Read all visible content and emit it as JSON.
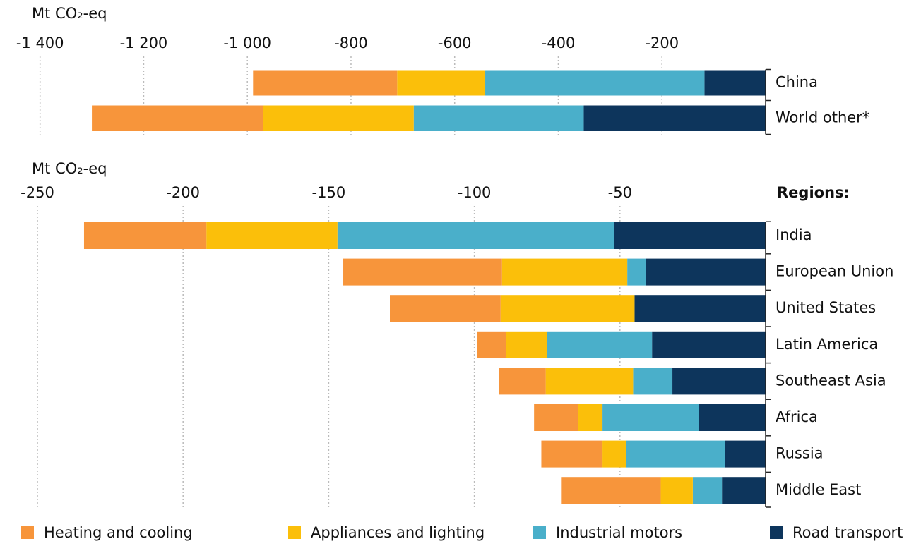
{
  "chart_data": [
    {
      "type": "bar",
      "orientation": "horizontal",
      "stacked": true,
      "xlabel": "Mt CO₂-eq",
      "categories": [
        "China",
        "World other*"
      ],
      "series": [
        {
          "name": "Heating and cooling",
          "color": "#f7953b",
          "values": [
            -278,
            -331
          ]
        },
        {
          "name": "Appliances and lighting",
          "color": "#fbbf0a",
          "values": [
            -170,
            -290
          ]
        },
        {
          "name": "Industrial motors",
          "color": "#4aafca",
          "values": [
            -423,
            -328
          ]
        },
        {
          "name": "Road transport",
          "color": "#0d355c",
          "values": [
            -118,
            -351
          ]
        }
      ],
      "xlim": [
        -1450,
        0
      ],
      "xticks": [
        {
          "value": -1400,
          "label": "-1 400"
        },
        {
          "value": -1200,
          "label": "-1 200"
        },
        {
          "value": -1000,
          "label": "-1 000"
        },
        -800,
        -600,
        -400,
        -200
      ],
      "grid": true
    },
    {
      "type": "bar",
      "orientation": "horizontal",
      "stacked": true,
      "xlabel": "Mt CO₂-eq",
      "annotation": "Regions:",
      "categories": [
        "India",
        "European Union",
        "United States",
        "Latin America",
        "Southeast Asia",
        "Africa",
        "Russia",
        "Middle East"
      ],
      "series": [
        {
          "values": [
            -42,
            -54.5,
            -38,
            -10,
            -16,
            -15,
            -21,
            -34
          ]
        },
        {
          "values": [
            -45,
            -43,
            -46,
            -14,
            -30,
            -8.5,
            -8,
            -11
          ]
        },
        {
          "values": [
            -95,
            -6.5,
            0,
            -36,
            -13.5,
            -33,
            -34,
            -10
          ]
        },
        {
          "values": [
            -52,
            -41,
            -45,
            -39,
            -32,
            -23,
            -14,
            -15
          ]
        }
      ],
      "xlim": [
        -258,
        0
      ],
      "xticks": [
        -250,
        -200,
        -150,
        -100,
        -50
      ],
      "grid": true
    }
  ]
}
